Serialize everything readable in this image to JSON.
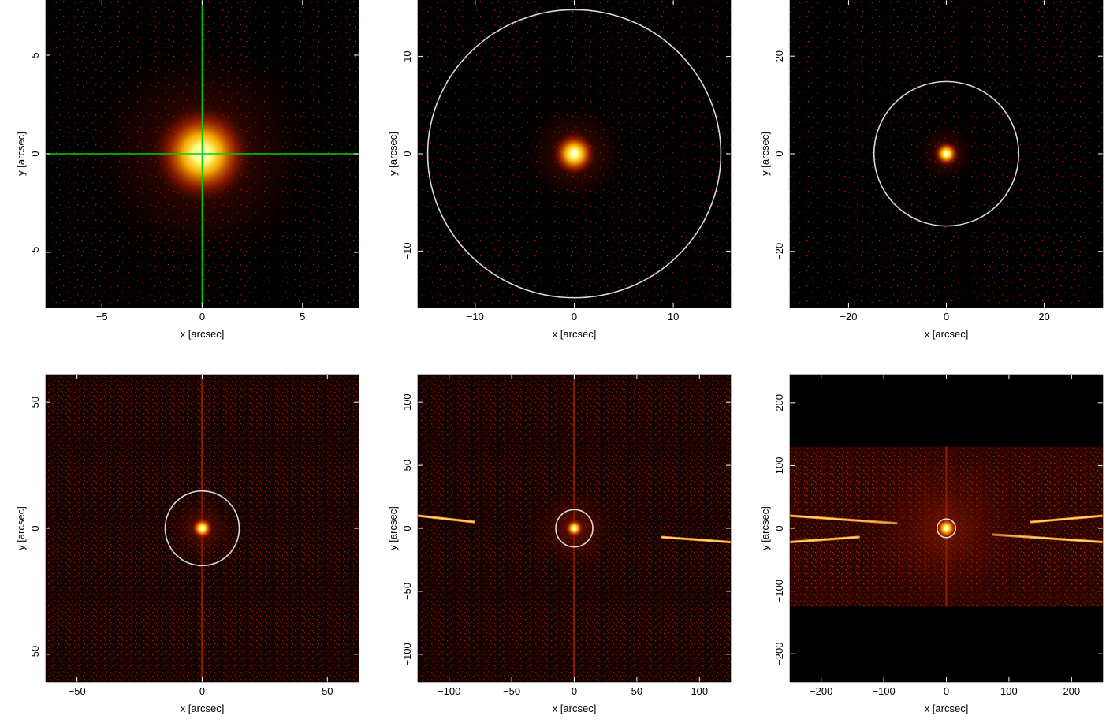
{
  "chart_data": [
    {
      "type": "heatmap",
      "xlabel": "x [arcsec]",
      "ylabel": "y [arcsec]",
      "xlim": [
        -7.8,
        7.8
      ],
      "ylim": [
        -7.8,
        7.8
      ],
      "xticks": [
        -5,
        0,
        5
      ],
      "yticks": [
        -5,
        0,
        5
      ],
      "source": {
        "x": 0,
        "y": 0
      },
      "crosshair": {
        "x": 0,
        "y": 0,
        "color": "#00d000"
      },
      "circle": null,
      "stray_bands": []
    },
    {
      "type": "heatmap",
      "xlabel": "x [arcsec]",
      "ylabel": "y [arcsec]",
      "xlim": [
        -15.8,
        15.8
      ],
      "ylim": [
        -15.8,
        15.8
      ],
      "xticks": [
        -10,
        0,
        10
      ],
      "yticks": [
        -10,
        0,
        10
      ],
      "source": {
        "x": 0,
        "y": 0
      },
      "crosshair": null,
      "circle": {
        "x": 0,
        "y": 0,
        "r": 14.8
      },
      "stray_bands": []
    },
    {
      "type": "heatmap",
      "xlabel": "x [arcsec]",
      "ylabel": "y [arcsec]",
      "xlim": [
        -32,
        32
      ],
      "ylim": [
        -31.5,
        31.5
      ],
      "xticks": [
        -20,
        0,
        20
      ],
      "yticks": [
        -20,
        0,
        20
      ],
      "source": {
        "x": 0,
        "y": 0
      },
      "crosshair": null,
      "circle": {
        "x": 0,
        "y": 0,
        "r": 14.8
      },
      "stray_bands": []
    },
    {
      "type": "heatmap",
      "xlabel": "x [arcsec]",
      "ylabel": "y [arcsec]",
      "xlim": [
        -62.5,
        62.5
      ],
      "ylim": [
        -61,
        61
      ],
      "xticks": [
        -50,
        0,
        50
      ],
      "yticks": [
        -50,
        0,
        50
      ],
      "source": {
        "x": 0,
        "y": 0
      },
      "crosshair": null,
      "circle": {
        "x": 0,
        "y": 0,
        "r": 14.8
      },
      "readout_streak": {
        "x": 0
      },
      "stray_bands": []
    },
    {
      "type": "heatmap",
      "xlabel": "x [arcsec]",
      "ylabel": "y [arcsec]",
      "xlim": [
        -125,
        125
      ],
      "ylim": [
        -122,
        122
      ],
      "xticks": [
        -100,
        -50,
        0,
        50,
        100
      ],
      "yticks": [
        -100,
        -50,
        0,
        50,
        100
      ],
      "source": {
        "x": 0,
        "y": 0
      },
      "crosshair": null,
      "circle": {
        "x": 0,
        "y": 0,
        "r": 14.8
      },
      "readout_streak": {
        "x": 0
      },
      "stray_bands": [
        {
          "x1": -125,
          "y1": 10,
          "x2": -80,
          "y2": 5
        },
        {
          "x1": 70,
          "y1": -7,
          "x2": 125,
          "y2": -11
        }
      ]
    },
    {
      "type": "heatmap",
      "xlabel": "x [arcsec]",
      "ylabel": "y [arcsec]",
      "xlim": [
        -250,
        250
      ],
      "ylim": [
        -245,
        245
      ],
      "xticks": [
        -200,
        -100,
        0,
        100,
        200
      ],
      "yticks": [
        -200,
        -100,
        0,
        100,
        200
      ],
      "source": {
        "x": 0,
        "y": 0
      },
      "crosshair": null,
      "circle": {
        "x": 0,
        "y": 0,
        "r": 14.8
      },
      "readout_streak": {
        "x": 0,
        "ymin": -125,
        "ymax": 130
      },
      "exposure_band": {
        "ymin": -125,
        "ymax": 130
      },
      "stray_bands": [
        {
          "x1": -250,
          "y1": 20,
          "x2": -80,
          "y2": 8
        },
        {
          "x1": -250,
          "y1": -22,
          "x2": -140,
          "y2": -14
        },
        {
          "x1": 135,
          "y1": 10,
          "x2": 250,
          "y2": 20
        },
        {
          "x1": 75,
          "y1": -10,
          "x2": 250,
          "y2": -22
        }
      ]
    }
  ]
}
